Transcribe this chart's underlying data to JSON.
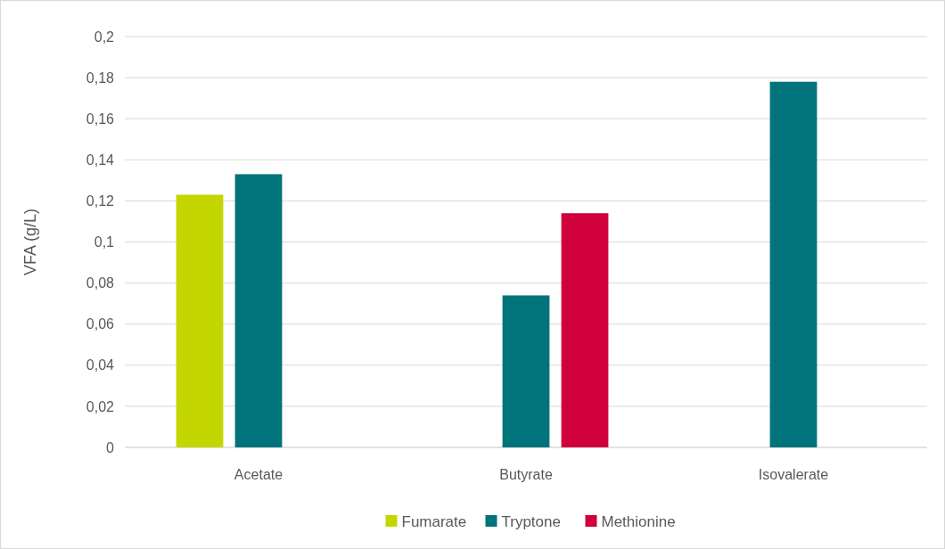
{
  "chart_data": {
    "type": "bar",
    "ylabel": "VFA (g/L)",
    "categories": [
      "Acetate",
      "Butyrate",
      "Isovalerate"
    ],
    "series": [
      {
        "name": "Fumarate",
        "color": "#c4d600",
        "values": [
          0.123,
          null,
          null
        ]
      },
      {
        "name": "Tryptone",
        "color": "#00747a",
        "values": [
          0.133,
          0.074,
          0.178
        ]
      },
      {
        "name": "Methionine",
        "color": "#d0003c",
        "values": [
          null,
          0.114,
          null
        ]
      }
    ],
    "ylim": [
      0,
      0.2
    ],
    "yticks": [
      0,
      {
        "value": 0.02,
        "label": "0,02"
      },
      {
        "value": 0.04,
        "label": "0,04"
      },
      {
        "value": 0.06,
        "label": "0,06"
      },
      {
        "value": 0.08,
        "label": "0,08"
      },
      {
        "value": 0.1,
        "label": "0,1"
      },
      {
        "value": 0.12,
        "label": "0,12"
      },
      {
        "value": 0.14,
        "label": "0,14"
      },
      {
        "value": 0.16,
        "label": "0,16"
      },
      {
        "value": 0.18,
        "label": "0,18"
      },
      {
        "value": 0.2,
        "label": "0,2"
      }
    ],
    "grid": "y",
    "legend": "bottom"
  }
}
